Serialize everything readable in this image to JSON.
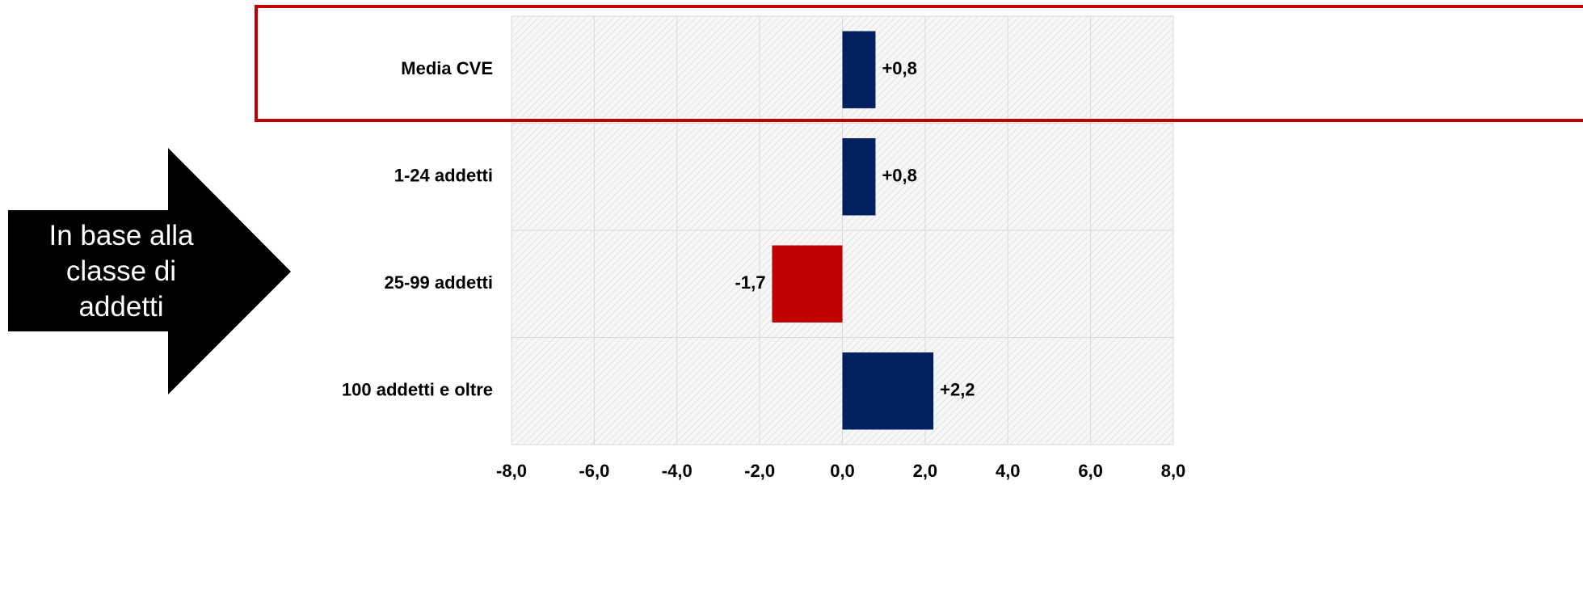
{
  "chart_data": {
    "type": "barh",
    "annotation": "In base alla classe di addetti",
    "categories": [
      "Media CVE",
      "1-24 addetti",
      "25-99 addetti",
      "100 addetti e oltre"
    ],
    "values": [
      0.8,
      0.8,
      -1.7,
      2.2
    ],
    "value_labels": [
      "+0,8",
      "+0,8",
      "-1,7",
      "+2,2"
    ],
    "colors": [
      "#002060",
      "#002060",
      "#c00000",
      "#002060"
    ],
    "xlim": [
      -8,
      8
    ],
    "xticks": [
      {
        "value": -8,
        "label": "-8,0"
      },
      {
        "value": -6,
        "label": "-6,0"
      },
      {
        "value": -4,
        "label": "-4,0"
      },
      {
        "value": -2,
        "label": "-2,0"
      },
      {
        "value": 0,
        "label": "0,0"
      },
      {
        "value": 2,
        "label": "2,0"
      },
      {
        "value": 4,
        "label": "4,0"
      },
      {
        "value": 6,
        "label": "6,0"
      },
      {
        "value": 8,
        "label": "8,0"
      }
    ],
    "grid": true
  }
}
